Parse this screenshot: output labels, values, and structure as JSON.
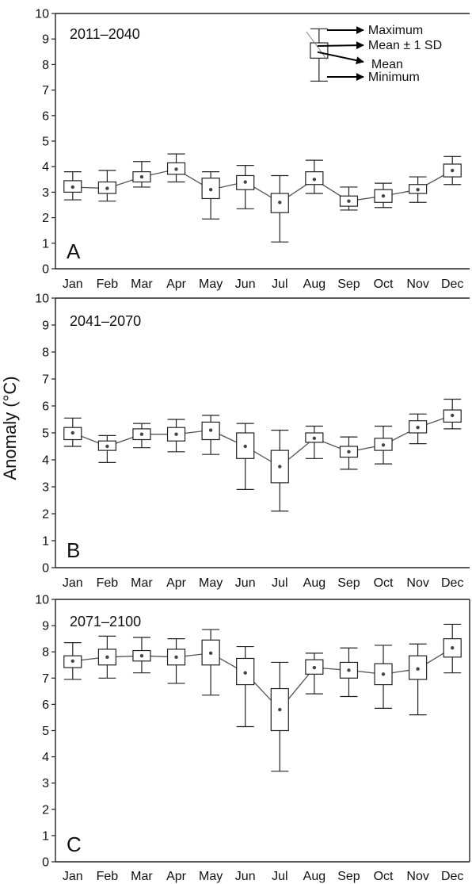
{
  "ylabel": "Anomaly (°C)",
  "legend": {
    "maximum": "Maximum",
    "mean_sd": "Mean ± 1 SD",
    "mean": "Mean",
    "minimum": "Minimum"
  },
  "chart_data": [
    {
      "type": "box",
      "title": "2011–2040",
      "panel_letter": "A",
      "categories": [
        "Jan",
        "Feb",
        "Mar",
        "Apr",
        "May",
        "Jun",
        "Jul",
        "Aug",
        "Sep",
        "Oct",
        "Nov",
        "Dec"
      ],
      "yticks": [
        "0",
        "1",
        "2",
        "3",
        "4",
        "5",
        "6",
        "7",
        "8",
        "9",
        "10"
      ],
      "ylim": [
        0,
        10
      ],
      "mean": [
        3.2,
        3.15,
        3.6,
        3.9,
        3.1,
        3.4,
        2.6,
        3.5,
        2.65,
        2.85,
        3.1,
        3.85
      ],
      "sd_low": [
        3.0,
        2.95,
        3.4,
        3.7,
        2.75,
        3.1,
        2.2,
        3.3,
        2.45,
        2.6,
        2.95,
        3.6
      ],
      "sd_high": [
        3.45,
        3.4,
        3.8,
        4.15,
        3.55,
        3.65,
        2.95,
        3.8,
        2.85,
        3.1,
        3.3,
        4.1
      ],
      "min": [
        2.7,
        2.65,
        3.2,
        3.4,
        1.95,
        2.35,
        1.05,
        2.95,
        2.3,
        2.4,
        2.6,
        3.3
      ],
      "max": [
        3.8,
        3.85,
        4.2,
        4.5,
        3.8,
        4.05,
        3.65,
        4.25,
        3.2,
        3.35,
        3.6,
        4.4
      ],
      "legend_example": {
        "x": "Aug",
        "min": 7.35,
        "sd_low": 8.25,
        "mean": 8.55,
        "sd_high": 8.85,
        "max": 9.4
      }
    },
    {
      "type": "box",
      "title": "2041–2070",
      "panel_letter": "B",
      "categories": [
        "Jan",
        "Feb",
        "Mar",
        "Apr",
        "May",
        "Jun",
        "Jul",
        "Aug",
        "Sep",
        "Oct",
        "Nov",
        "Dec"
      ],
      "yticks": [
        "0",
        "1",
        "2",
        "3",
        "4",
        "5",
        "6",
        "7",
        "8",
        "9",
        "10"
      ],
      "ylim": [
        0,
        10
      ],
      "mean": [
        5.0,
        4.5,
        4.95,
        4.95,
        5.1,
        4.5,
        3.75,
        4.8,
        4.3,
        4.55,
        5.2,
        5.65
      ],
      "sd_low": [
        4.75,
        4.35,
        4.75,
        4.7,
        4.75,
        4.05,
        3.15,
        4.65,
        4.1,
        4.35,
        5.0,
        5.4
      ],
      "sd_high": [
        5.2,
        4.7,
        5.15,
        5.2,
        5.4,
        5.0,
        4.35,
        5.0,
        4.5,
        4.8,
        5.45,
        5.85
      ],
      "min": [
        4.5,
        3.9,
        4.45,
        4.3,
        4.2,
        2.9,
        2.1,
        4.05,
        3.65,
        3.85,
        4.6,
        5.15
      ],
      "max": [
        5.55,
        4.9,
        5.35,
        5.5,
        5.65,
        5.35,
        5.1,
        5.25,
        4.85,
        5.25,
        5.7,
        6.25
      ]
    },
    {
      "type": "box",
      "title": "2071–2100",
      "panel_letter": "C",
      "categories": [
        "Jan",
        "Feb",
        "Mar",
        "Apr",
        "May",
        "Jun",
        "Jul",
        "Aug",
        "Sep",
        "Oct",
        "Nov",
        "Dec"
      ],
      "yticks": [
        "0",
        "1",
        "2",
        "3",
        "4",
        "5",
        "6",
        "7",
        "8",
        "9",
        "10"
      ],
      "ylim": [
        0,
        10
      ],
      "mean": [
        7.65,
        7.8,
        7.85,
        7.8,
        7.95,
        7.2,
        5.8,
        7.4,
        7.3,
        7.15,
        7.35,
        8.15
      ],
      "sd_low": [
        7.4,
        7.5,
        7.65,
        7.5,
        7.5,
        6.75,
        5.0,
        7.15,
        7.0,
        6.75,
        6.95,
        7.8
      ],
      "sd_high": [
        7.85,
        8.1,
        8.05,
        8.1,
        8.45,
        7.75,
        6.6,
        7.7,
        7.6,
        7.55,
        7.85,
        8.5
      ],
      "min": [
        6.95,
        7.0,
        7.2,
        6.8,
        6.35,
        5.15,
        3.45,
        6.4,
        6.3,
        5.85,
        5.6,
        7.2
      ],
      "max": [
        8.35,
        8.6,
        8.55,
        8.5,
        8.85,
        8.2,
        7.6,
        7.95,
        8.15,
        8.25,
        8.3,
        9.05
      ]
    }
  ]
}
